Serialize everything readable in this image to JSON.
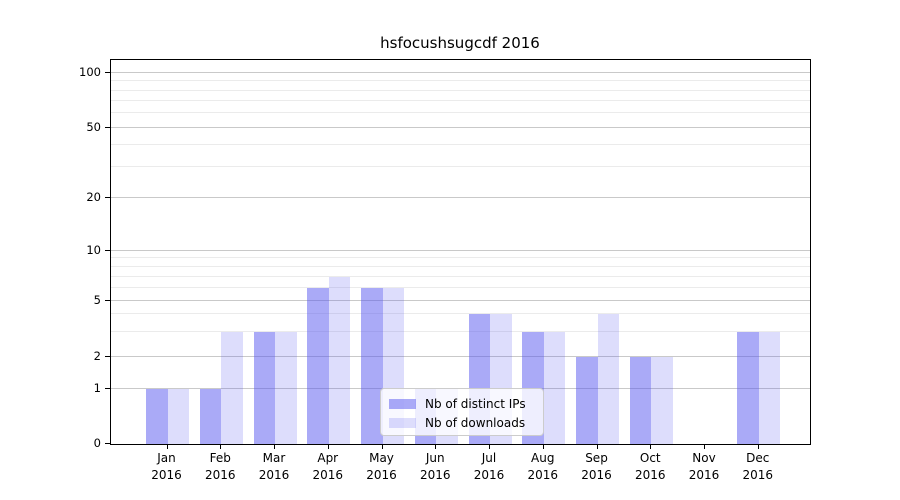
{
  "title": "hsfocushsugcdf 2016",
  "legend": {
    "items": [
      {
        "label": "Nb of distinct IPs",
        "color": "#aaaaf8"
      },
      {
        "label": "Nb of downloads",
        "color": "#dcdcf8"
      }
    ]
  },
  "chart_data": {
    "type": "bar",
    "title": "hsfocushsugcdf 2016",
    "categories": [
      "Jan 2016",
      "Feb 2016",
      "Mar 2016",
      "Apr 2016",
      "May 2016",
      "Jun 2016",
      "Jul 2016",
      "Aug 2016",
      "Sep 2016",
      "Oct 2016",
      "Nov 2016",
      "Dec 2016"
    ],
    "series": [
      {
        "name": "Nb of distinct IPs",
        "color": "#aaaaf8",
        "values": [
          1,
          1,
          3,
          6,
          6,
          1,
          4,
          3,
          2,
          2,
          0,
          3
        ]
      },
      {
        "name": "Nb of downloads",
        "color": "#dcdcf8",
        "values": [
          1,
          3,
          3,
          7,
          6,
          1,
          4,
          3,
          4,
          2,
          0,
          3
        ]
      }
    ],
    "xlabel": "",
    "ylabel": "",
    "yticks": [
      0,
      1,
      2,
      5,
      10,
      20,
      50,
      100
    ],
    "ytick_labels": [
      "0",
      "1",
      "2",
      "5",
      "10",
      "20",
      "50",
      "100"
    ],
    "minor_gridline_values": [
      3,
      4,
      6,
      7,
      8,
      9,
      30,
      40,
      60,
      70,
      80,
      90
    ],
    "yscale": "log-like (linear 0-1, log above)",
    "ylim": [
      0,
      110
    ],
    "grid": true,
    "legend_position": "lower center, inside plot",
    "bar_colors_base": "#5555f0"
  }
}
